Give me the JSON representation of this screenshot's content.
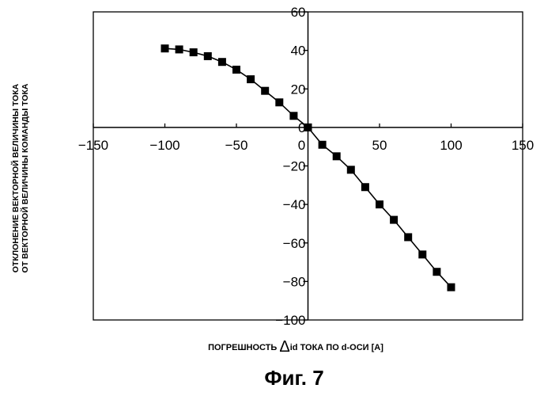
{
  "chart_data": {
    "type": "line",
    "xlabel_prefix": "ПОГРЕШНОСТЬ",
    "xlabel_symbol": "Δ",
    "xlabel_rest": "id ТОКА ПО d-ОСИ [A]",
    "ylabel_line1": "ОТКЛОНЕНИЕ ВЕКТОРНОЙ ВЕЛИЧИНЫ ТОКА",
    "ylabel_line2": "ОТ ВЕКТОРНОЙ ВЕЛИЧИНЫ КОМАНДЫ ТОКА",
    "xlim": [
      -150,
      150
    ],
    "ylim": [
      -100,
      60
    ],
    "x_ticks": [
      -150,
      -100,
      -50,
      0,
      50,
      100,
      150
    ],
    "y_ticks": [
      60,
      40,
      20,
      0,
      -20,
      -40,
      -60,
      -80,
      -100
    ],
    "marker": "square",
    "series": [
      {
        "x": [
          -100,
          -90,
          -80,
          -70,
          -60,
          -50,
          -40,
          -30,
          -20,
          -10,
          0,
          10,
          20,
          30,
          40,
          50,
          60,
          70,
          80,
          90,
          100
        ],
        "y": [
          41,
          40.5,
          39,
          37,
          34,
          30,
          25,
          19,
          13,
          6,
          0,
          -9,
          -15,
          -22,
          -31,
          -40,
          -48,
          -57,
          -66,
          -75,
          -83
        ]
      }
    ]
  },
  "caption": "Фиг. 7"
}
